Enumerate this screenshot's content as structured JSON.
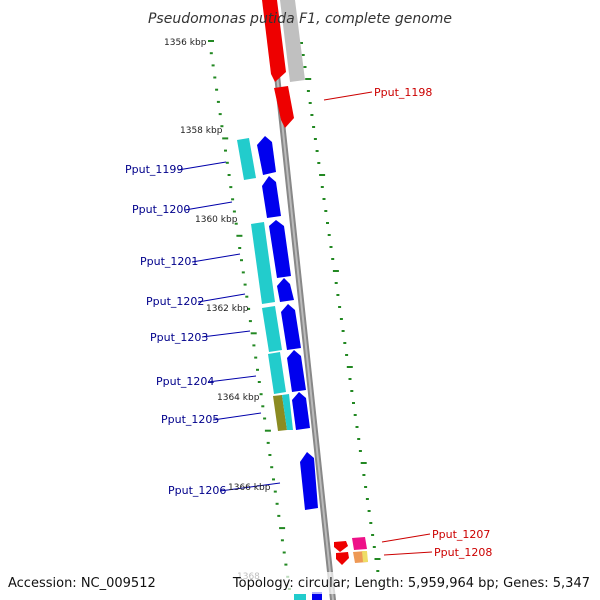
{
  "title": "Pseudomonas putida F1, complete genome",
  "footer": {
    "accession": "Accession: NC_009512",
    "summary": "Topology: circular; Length: 5,959,964 bp; Genes: 5,347"
  },
  "kbp_labels": [
    "1356 kbp",
    "1358 kbp",
    "1360 kbp",
    "1362 kbp",
    "1364 kbp",
    "1366 kbp",
    "1368"
  ],
  "genes_left": [
    "Pput_1199",
    "Pput_1200",
    "Pput_1201",
    "Pput_1202",
    "Pput_1203",
    "Pput_1204",
    "Pput_1205",
    "Pput_1206"
  ],
  "genes_right": [
    "Pput_1198",
    "Pput_1207",
    "Pput_1208"
  ],
  "colors": {
    "cds": "#0000ee",
    "gene": "#22cccc",
    "rrna": "#ee0000",
    "other": "#bbbbbb",
    "backbone": "#888888",
    "tick": "#228822"
  }
}
